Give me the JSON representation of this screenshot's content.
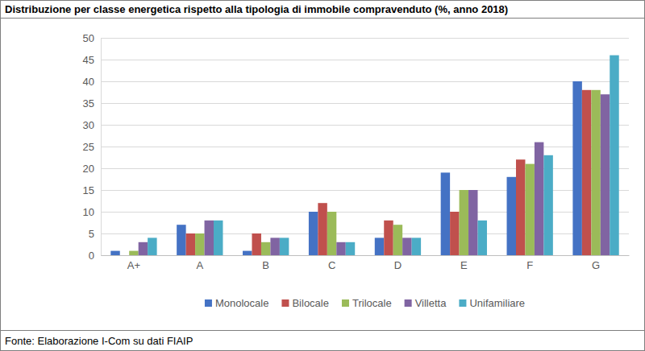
{
  "chart_data": {
    "type": "bar",
    "title": "Distribuzione per classe energetica rispetto alla tipologia di immobile compravenduto (%, anno 2018)",
    "source": "Fonte: Elaborazione I-Com su dati FIAIP",
    "categories": [
      "A+",
      "A",
      "B",
      "C",
      "D",
      "E",
      "F",
      "G"
    ],
    "series": [
      {
        "name": "Monolocale",
        "color": "#4472c4",
        "values": [
          1,
          7,
          1,
          10,
          4,
          19,
          18,
          40
        ]
      },
      {
        "name": "Bilocale",
        "color": "#c0504d",
        "values": [
          0,
          5,
          5,
          12,
          8,
          10,
          22,
          38
        ]
      },
      {
        "name": "Trilocale",
        "color": "#9bbb59",
        "values": [
          1,
          5,
          3,
          10,
          7,
          15,
          21,
          38
        ]
      },
      {
        "name": "Villetta",
        "color": "#8064a2",
        "values": [
          3,
          8,
          4,
          3,
          4,
          15,
          26,
          37
        ]
      },
      {
        "name": "Unifamiliare",
        "color": "#4bacc6",
        "values": [
          4,
          8,
          4,
          3,
          4,
          8,
          23,
          46
        ]
      }
    ],
    "ylim": [
      0,
      50
    ],
    "yticks": [
      0,
      5,
      10,
      15,
      20,
      25,
      30,
      35,
      40,
      45,
      50
    ],
    "grid": true,
    "legend": "bottom"
  }
}
